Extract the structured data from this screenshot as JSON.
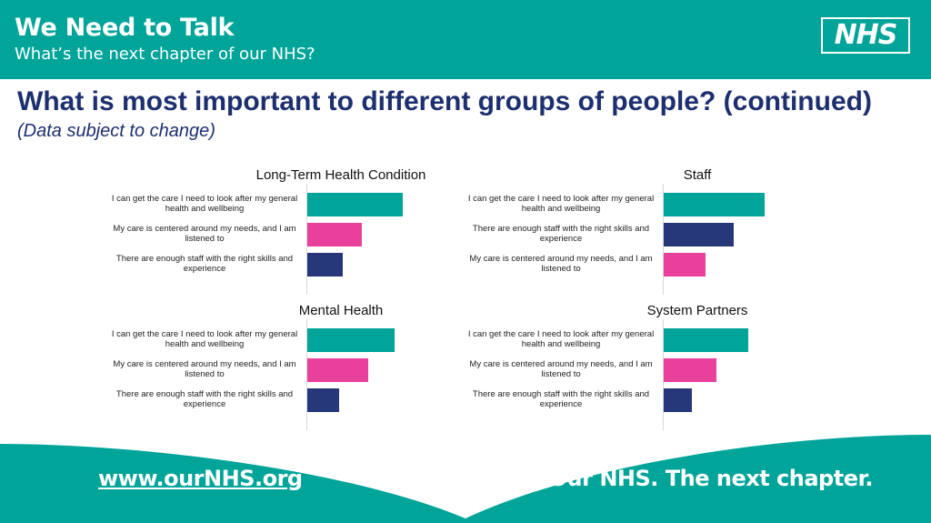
{
  "header": {
    "brand_title": "We Need to Talk",
    "brand_subtitle": "What’s the next chapter of our NHS?",
    "logo_text": "NHS"
  },
  "page": {
    "title": "What is most important to different groups of people? (continued)",
    "note": "(Data subject to change)"
  },
  "colors": {
    "teal": "#00a499",
    "pink": "#e9409b",
    "navy": "#27387a",
    "title_navy": "#1d2f6f"
  },
  "chart_data": [
    {
      "type": "bar",
      "orientation": "horizontal",
      "title": "Long-Term Health Condition",
      "categories": [
        "I can get the care I need to look after my general health and wellbeing",
        "My care is centered around my needs, and I am listened to",
        "There are enough staff with the right skills and experience"
      ],
      "values": [
        105,
        60,
        39
      ],
      "colors": [
        "#00a499",
        "#e9409b",
        "#27387a"
      ]
    },
    {
      "type": "bar",
      "orientation": "horizontal",
      "title": "Staff",
      "categories": [
        "I can get the care I need to look after my general health and wellbeing",
        "There are enough staff with the right skills and experience",
        "My care is centered around my needs, and I am listened to"
      ],
      "values": [
        111,
        77,
        46
      ],
      "colors": [
        "#00a499",
        "#27387a",
        "#e9409b"
      ]
    },
    {
      "type": "bar",
      "orientation": "horizontal",
      "title": "Mental Health",
      "categories": [
        "I can get the care I need to look after my general health and wellbeing",
        "My care is centered around my needs, and I am listened to",
        "There are enough staff with the right skills and experience"
      ],
      "values": [
        96,
        67,
        35
      ],
      "colors": [
        "#00a499",
        "#e9409b",
        "#27387a"
      ]
    },
    {
      "type": "bar",
      "orientation": "horizontal",
      "title": "System Partners",
      "categories": [
        "I can get the care I need to look after my general health and wellbeing",
        "My care is centered around my needs, and I am listened to",
        "There are enough staff with the right skills and experience"
      ],
      "values": [
        93,
        58,
        31
      ],
      "colors": [
        "#00a499",
        "#e9409b",
        "#27387a"
      ]
    }
  ],
  "footer": {
    "url": "www.ourNHS.org",
    "tagline": "Our NHS. The next chapter."
  }
}
